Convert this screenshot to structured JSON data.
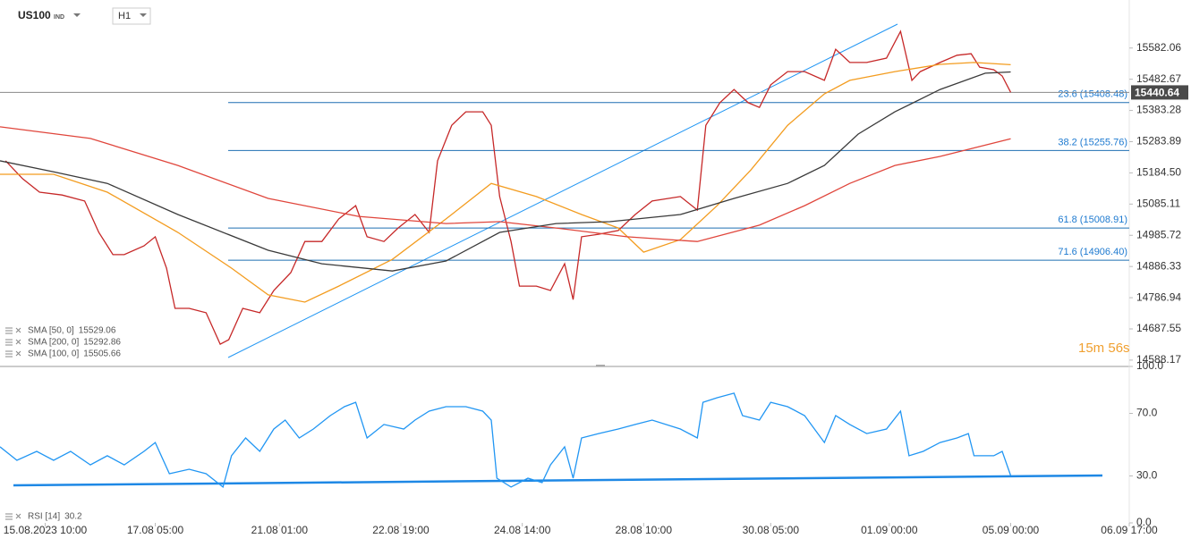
{
  "toolbar": {
    "symbol": "US100",
    "market": "IND",
    "interval": "H1"
  },
  "timer": "15m 56s",
  "chart_data": [
    {
      "type": "line",
      "xlim": [
        0,
        400
      ],
      "xticks": [
        {
          "value": 16,
          "label": "15.08.2023 10:00"
        },
        {
          "value": 55,
          "label": "17.08 05:00"
        },
        {
          "value": 99,
          "label": "21.08 01:00"
        },
        {
          "value": 142,
          "label": "22.08 19:00"
        },
        {
          "value": 185,
          "label": "24.08 14:00"
        },
        {
          "value": 228,
          "label": "28.08 10:00"
        },
        {
          "value": 273,
          "label": "30.08 05:00"
        },
        {
          "value": 315,
          "label": "01.09 00:00"
        },
        {
          "value": 358,
          "label": "05.09 00:00"
        },
        {
          "value": 400,
          "label": "06.09 17:00"
        }
      ],
      "ylim": [
        14568,
        15735
      ],
      "yticks": [
        15582.06,
        15482.67,
        15383.28,
        15283.89,
        {
          "value": 15184.5,
          "label": "15184.50"
        },
        15085.11,
        14985.72,
        14886.33,
        14786.94,
        14687.55,
        14588.17
      ],
      "current_price": 15440.64,
      "fib_levels": [
        {
          "value": 15408.48,
          "label": "23.6 (15408.48)"
        },
        {
          "value": 15255.76,
          "label": "38.2 (15255.76)"
        },
        {
          "value": 15008.91,
          "label": "61.8 (15008.91)"
        },
        {
          "value": 14906.4,
          "label": "71.6 (14906.40)"
        }
      ],
      "series": [
        {
          "color": "#c62828",
          "x": [
            2,
            8,
            14,
            22,
            30,
            35,
            40,
            44,
            51,
            55,
            59,
            62,
            67,
            73,
            78,
            81,
            86,
            92,
            97,
            103,
            108,
            114,
            120,
            126,
            130,
            136,
            141,
            147,
            152,
            155,
            160,
            165,
            171,
            174,
            177,
            181,
            184,
            190,
            195,
            200,
            203,
            206,
            212,
            219,
            225,
            231,
            241,
            247,
            250,
            255,
            260,
            265,
            269,
            273,
            279,
            285,
            292,
            296,
            301,
            307,
            314,
            319,
            323,
            326,
            333,
            339,
            344,
            347,
            352,
            355,
            358
          ],
          "values": [
            15223,
            15166,
            15123,
            15114,
            15095,
            14995,
            14924,
            14924,
            14952,
            14981,
            14881,
            14753,
            14753,
            14739,
            14639,
            14653,
            14753,
            14739,
            14810,
            14867,
            14966,
            14966,
            15038,
            15080,
            14981,
            14966,
            15009,
            15052,
            14995,
            15223,
            15336,
            15379,
            15379,
            15336,
            15109,
            14966,
            14824,
            14824,
            14810,
            14895,
            14781,
            14981,
            14989,
            15001,
            15052,
            15095,
            15109,
            15066,
            15336,
            15408,
            15450,
            15408,
            15393,
            15465,
            15507,
            15507,
            15479,
            15578,
            15536,
            15536,
            15550,
            15635,
            15479,
            15507,
            15536,
            15559,
            15564,
            15521,
            15513,
            15493,
            15441
          ]
        },
        {
          "name": "SMA [50, 0]",
          "legend_value": 15529.06,
          "color": "#f39c1f",
          "x": [
            0,
            19,
            38,
            63,
            82,
            95,
            108,
            120,
            139,
            158,
            174,
            190,
            206,
            219,
            228,
            241,
            254,
            266,
            279,
            292,
            301,
            317,
            333,
            345,
            358
          ],
          "values": [
            15180,
            15180,
            15123,
            14995,
            14881,
            14796,
            14773,
            14824,
            14909,
            15038,
            15151,
            15109,
            15052,
            15009,
            14932,
            14972,
            15080,
            15194,
            15336,
            15436,
            15479,
            15507,
            15530,
            15536,
            15529
          ]
        },
        {
          "name": "SMA [200, 0]",
          "legend_value": 15292.86,
          "color": "#e0463c",
          "x": [
            0,
            32,
            63,
            95,
            127,
            158,
            177,
            197,
            222,
            247,
            269,
            285,
            301,
            317,
            333,
            358
          ],
          "values": [
            15331,
            15294,
            15208,
            15103,
            15046,
            15023,
            15029,
            15009,
            14981,
            14966,
            15018,
            15080,
            15151,
            15208,
            15237,
            15293
          ]
        },
        {
          "name": "SMA [100, 0]",
          "legend_value": 15505.66,
          "color": "#3a3a3a",
          "x": [
            0,
            19,
            38,
            63,
            95,
            114,
            139,
            158,
            177,
            197,
            216,
            241,
            260,
            279,
            292,
            304,
            317,
            333,
            349,
            358
          ],
          "values": [
            15223,
            15188,
            15151,
            15052,
            14938,
            14895,
            14872,
            14904,
            14995,
            15023,
            15029,
            15052,
            15103,
            15151,
            15208,
            15308,
            15379,
            15450,
            15502,
            15506
          ]
        }
      ]
    },
    {
      "type": "line",
      "xlim": [
        0,
        400
      ],
      "ylim": [
        0,
        100
      ],
      "yticks": [
        {
          "value": 100,
          "label": "100.0"
        },
        {
          "value": 70,
          "label": "70.0"
        },
        {
          "value": 30,
          "label": "30.0"
        },
        {
          "value": 0,
          "label": "0.0"
        }
      ],
      "series": [
        {
          "name": "RSI [14]",
          "legend_value": 30.2,
          "color": "#2196f3",
          "x": [
            0,
            6,
            13,
            19,
            25,
            32,
            38,
            44,
            51,
            55,
            60,
            67,
            73,
            79,
            82,
            87,
            92,
            97,
            101,
            106,
            111,
            117,
            122,
            126,
            130,
            136,
            143,
            147,
            152,
            158,
            165,
            171,
            174,
            176,
            181,
            187,
            192,
            195,
            200,
            203,
            206,
            212,
            219,
            225,
            231,
            241,
            247,
            249,
            254,
            260,
            263,
            269,
            273,
            279,
            285,
            292,
            296,
            301,
            307,
            314,
            319,
            322,
            327,
            333,
            339,
            343,
            345,
            352,
            355,
            358
          ],
          "values": [
            48.6,
            40,
            45.7,
            40,
            45.7,
            37.1,
            42.9,
            37.1,
            45.7,
            51.4,
            31.4,
            34.3,
            31.4,
            22.9,
            42.9,
            54.3,
            45.7,
            60,
            65.7,
            54.3,
            60,
            68.6,
            74.3,
            77.1,
            54.3,
            62.9,
            60,
            65.7,
            71.4,
            74.3,
            74.3,
            71.4,
            65.7,
            28.6,
            22.9,
            28.6,
            25.7,
            37.1,
            48.6,
            28.6,
            54.3,
            57.1,
            60,
            62.9,
            65.7,
            60,
            54.3,
            77.1,
            80,
            82.9,
            68.6,
            65.7,
            77.1,
            74.3,
            68.6,
            51.4,
            68.6,
            62.9,
            57.1,
            60,
            71.4,
            42.9,
            45.7,
            51.4,
            54.3,
            57.1,
            42.9,
            42.9,
            45.7,
            30.2
          ]
        }
      ]
    }
  ]
}
